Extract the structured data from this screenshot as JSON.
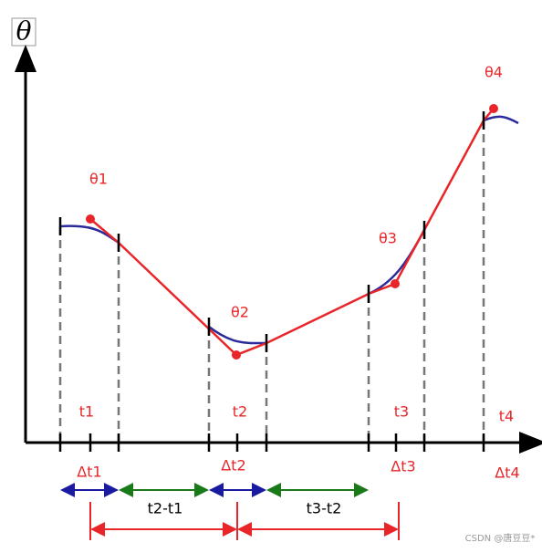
{
  "axis_label": "θ",
  "points": [
    "θ1",
    "θ2",
    "θ3",
    "θ4"
  ],
  "time_labels": [
    "t1",
    "t2",
    "t3",
    "t4"
  ],
  "interval_labels": [
    "Δt1",
    "Δt2",
    "Δt3",
    "Δt4"
  ],
  "differences": [
    "t2-t1",
    "t3-t2"
  ],
  "watermark": "CSDN @唐豆豆*"
}
